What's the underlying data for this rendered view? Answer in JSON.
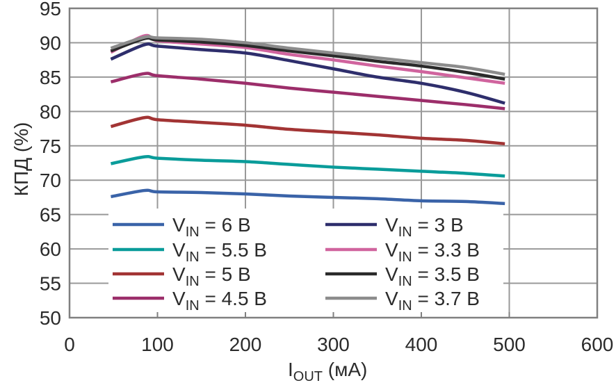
{
  "chart_data": {
    "type": "line",
    "title": "",
    "xlabel": {
      "main": "I",
      "sub": "OUT",
      "rest": " (мА)"
    },
    "ylabel": "КПД (%)",
    "xlim": [
      0,
      600
    ],
    "ylim": [
      50,
      95
    ],
    "xticks": [
      0,
      100,
      200,
      300,
      400,
      500,
      600
    ],
    "yticks": [
      50,
      55,
      60,
      65,
      70,
      75,
      80,
      85,
      90,
      95
    ],
    "xtick_labels": [
      "0",
      "100",
      "200",
      "300",
      "400",
      "500",
      "600"
    ],
    "ytick_labels": [
      "50",
      "55",
      "60",
      "65",
      "70",
      "75",
      "80",
      "85",
      "90",
      "95"
    ],
    "grid": true,
    "legend_position": "bottom-center",
    "x": [
      47,
      85,
      100,
      150,
      200,
      250,
      300,
      350,
      400,
      450,
      495
    ],
    "series": [
      {
        "name": "6 B",
        "label_main": "V",
        "label_sub": "IN",
        "label_rest": " = 6 B",
        "color": "#3a63a8",
        "values": [
          67.6,
          68.5,
          68.3,
          68.2,
          68.0,
          67.7,
          67.5,
          67.3,
          67.0,
          66.9,
          66.6
        ]
      },
      {
        "name": "5.5 B",
        "label_main": "V",
        "label_sub": "IN",
        "label_rest": " = 5.5 B",
        "color": "#0a9c9a",
        "values": [
          72.4,
          73.4,
          73.2,
          72.9,
          72.7,
          72.3,
          71.9,
          71.6,
          71.3,
          71.0,
          70.6
        ]
      },
      {
        "name": "5 B",
        "label_main": "V",
        "label_sub": "IN",
        "label_rest": " = 5 B",
        "color": "#a23434",
        "values": [
          77.8,
          79.1,
          78.8,
          78.4,
          78.0,
          77.4,
          77.0,
          76.6,
          76.1,
          75.8,
          75.3
        ]
      },
      {
        "name": "4.5 B",
        "label_main": "V",
        "label_sub": "IN",
        "label_rest": " = 4.5 B",
        "color": "#9c2e6a",
        "values": [
          84.3,
          85.5,
          85.2,
          84.7,
          84.1,
          83.4,
          82.8,
          82.2,
          81.6,
          81.0,
          80.4
        ]
      },
      {
        "name": "3 B",
        "label_main": "V",
        "label_sub": "IN",
        "label_rest": " = 3 B",
        "color": "#2e2e6c",
        "values": [
          87.6,
          89.7,
          89.5,
          89.0,
          88.5,
          87.4,
          86.2,
          85.0,
          84.1,
          82.8,
          81.2
        ]
      },
      {
        "name": "3.3 B",
        "label_main": "V",
        "label_sub": "IN",
        "label_rest": " = 3.3 B",
        "color": "#d0649e",
        "values": [
          88.6,
          91.0,
          90.3,
          89.8,
          89.3,
          88.3,
          87.5,
          86.6,
          85.8,
          84.9,
          84.1
        ]
      },
      {
        "name": "3.5 B",
        "label_main": "V",
        "label_sub": "IN",
        "label_rest": " = 3.5 B",
        "color": "#2a2a2a",
        "values": [
          88.8,
          90.6,
          90.4,
          90.1,
          89.6,
          88.8,
          88.1,
          87.3,
          86.6,
          85.7,
          84.7
        ]
      },
      {
        "name": "3.7 B",
        "label_main": "V",
        "label_sub": "IN",
        "label_rest": " = 3.7 B",
        "color": "#8c8c8c",
        "values": [
          89.2,
          90.8,
          90.7,
          90.5,
          90.0,
          89.2,
          88.5,
          87.8,
          87.1,
          86.4,
          85.4
        ]
      }
    ],
    "colors": {
      "grid": "#999999",
      "frame": "#808080",
      "text": "#2b2b2b"
    }
  }
}
